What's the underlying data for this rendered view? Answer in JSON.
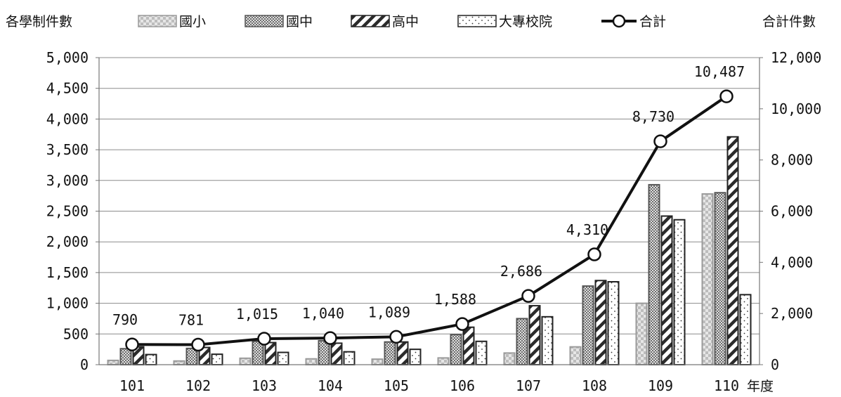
{
  "chart_data": {
    "type": "bar",
    "secondary_type": "line",
    "ylabel_left": "各學制件數",
    "ylabel_right": "合計件數",
    "xlabel": "年度",
    "categories": [
      "101",
      "102",
      "103",
      "104",
      "105",
      "106",
      "107",
      "108",
      "109",
      "110"
    ],
    "ylim_left": [
      0,
      5000
    ],
    "yticks_left": [
      "0",
      "500",
      "1,000",
      "1,500",
      "2,000",
      "2,500",
      "3,000",
      "3,500",
      "4,000",
      "4,500",
      "5,000"
    ],
    "ylim_right": [
      0,
      12000
    ],
    "yticks_right": [
      "0",
      "2,000",
      "4,000",
      "6,000",
      "8,000",
      "10,000",
      "12,000"
    ],
    "grid": true,
    "legend_position": "top",
    "series": [
      {
        "name": "國小",
        "axis": "left",
        "values": [
          70,
          60,
          105,
          95,
          90,
          110,
          190,
          290,
          1000,
          2780
        ]
      },
      {
        "name": "國中",
        "axis": "left",
        "values": [
          260,
          265,
          380,
          390,
          370,
          490,
          750,
          1280,
          2930,
          2800
        ]
      },
      {
        "name": "高中",
        "axis": "left",
        "values": [
          290,
          280,
          360,
          350,
          370,
          610,
          960,
          1370,
          2420,
          3710
        ]
      },
      {
        "name": "大專校院",
        "axis": "left",
        "values": [
          165,
          170,
          200,
          210,
          250,
          380,
          780,
          1350,
          2360,
          1140
        ]
      },
      {
        "name": "合計",
        "axis": "right",
        "type": "line",
        "values": [
          790,
          781,
          1015,
          1040,
          1089,
          1588,
          2686,
          4310,
          8730,
          10487
        ],
        "labels": [
          "790",
          "781",
          "1,015",
          "1,040",
          "1,089",
          "1,588",
          "2,686",
          "4,310",
          "8,730",
          "10,487"
        ]
      }
    ]
  }
}
